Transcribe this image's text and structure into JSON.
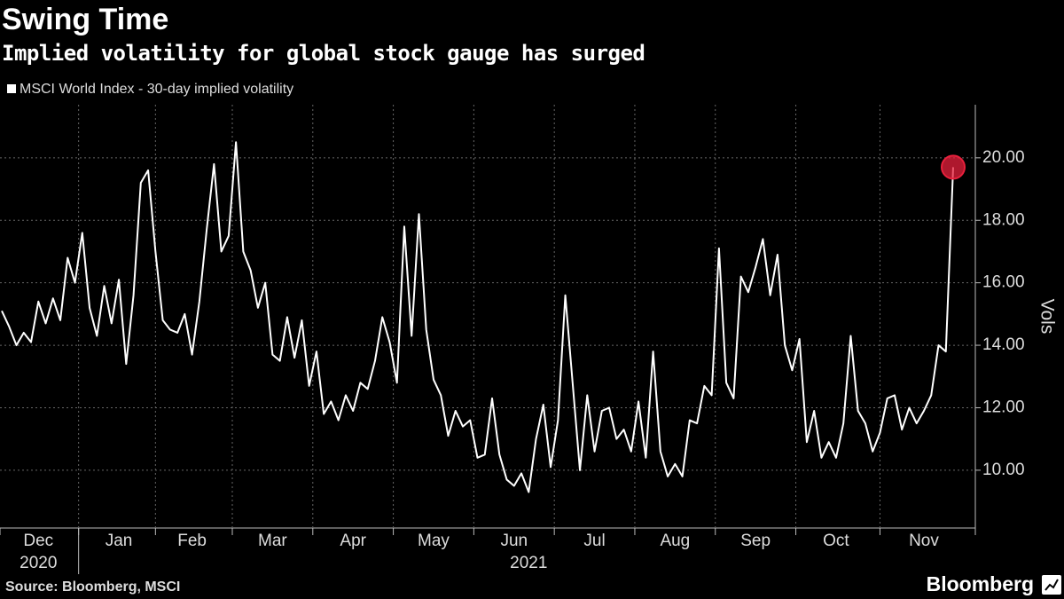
{
  "chart_data": {
    "type": "line",
    "title": "Swing Time",
    "subtitle": "Implied volatility for global stock gauge has surged",
    "y_axis_label": "Vols",
    "source": "Source: Bloomberg, MSCI",
    "brand": "Bloomberg",
    "categories": [
      null,
      null,
      null,
      null,
      null,
      "Dec",
      null,
      null,
      null,
      null,
      null,
      null,
      null,
      null,
      null,
      null,
      "Jan",
      null,
      null,
      null,
      null,
      null,
      null,
      null,
      null,
      null,
      "Feb",
      null,
      null,
      null,
      null,
      null,
      null,
      null,
      null,
      null,
      null,
      "Mar",
      null,
      null,
      null,
      null,
      null,
      null,
      null,
      null,
      null,
      null,
      "Apr",
      null,
      null,
      null,
      null,
      null,
      null,
      null,
      null,
      null,
      null,
      "May",
      null,
      null,
      null,
      null,
      null,
      null,
      null,
      null,
      null,
      null,
      "Jun",
      null,
      null,
      null,
      null,
      null,
      null,
      null,
      null,
      null,
      null,
      "Jul",
      null,
      null,
      null,
      null,
      null,
      null,
      null,
      null,
      null,
      null,
      "Aug",
      null,
      null,
      null,
      null,
      null,
      null,
      null,
      null,
      null,
      null,
      "Sep",
      null,
      null,
      null,
      null,
      null,
      null,
      null,
      null,
      null,
      null,
      "Oct",
      null,
      null,
      null,
      null,
      null,
      null,
      null,
      null,
      null,
      null,
      null,
      "Nov",
      null,
      null,
      null,
      null
    ],
    "x_groups": [
      {
        "label": "2020",
        "index": 5
      },
      {
        "label": "2021",
        "index": 72
      }
    ],
    "series": [
      {
        "name": "MSCI World Index - 30-day implied volatility",
        "color": "#ffffff",
        "values": [
          15.1,
          14.6,
          14.0,
          14.4,
          14.1,
          15.4,
          14.7,
          15.5,
          14.8,
          16.8,
          16.0,
          17.6,
          15.2,
          14.3,
          15.9,
          14.7,
          16.1,
          13.4,
          15.6,
          19.2,
          19.6,
          17.0,
          14.8,
          14.5,
          14.4,
          15.0,
          13.7,
          15.4,
          17.7,
          19.8,
          17.0,
          17.5,
          20.5,
          17.0,
          16.4,
          15.2,
          16.0,
          13.7,
          13.5,
          14.9,
          13.6,
          14.8,
          12.7,
          13.8,
          11.8,
          12.2,
          11.6,
          12.4,
          11.9,
          12.8,
          12.6,
          13.5,
          14.9,
          14.1,
          12.8,
          17.8,
          14.3,
          18.2,
          14.5,
          12.9,
          12.4,
          11.1,
          11.9,
          11.4,
          11.6,
          10.4,
          10.5,
          12.3,
          10.5,
          9.7,
          9.5,
          9.9,
          9.3,
          11.0,
          12.1,
          10.1,
          11.6,
          15.6,
          12.8,
          10.0,
          12.4,
          10.6,
          11.9,
          12.0,
          11.0,
          11.3,
          10.6,
          12.2,
          10.4,
          13.8,
          10.6,
          9.8,
          10.2,
          9.8,
          11.6,
          11.5,
          12.7,
          12.4,
          17.1,
          12.8,
          12.3,
          16.2,
          15.7,
          16.5,
          17.4,
          15.6,
          16.9,
          14.0,
          13.2,
          14.2,
          10.9,
          11.9,
          10.4,
          10.9,
          10.4,
          11.5,
          14.3,
          11.9,
          11.5,
          10.6,
          11.2,
          12.3,
          12.4,
          11.3,
          12.0,
          11.5,
          11.9,
          12.4,
          14.0,
          13.8,
          19.7
        ]
      }
    ],
    "highlight_last": true,
    "highlight_color": "#e8203c",
    "ylim": [
      8.15,
      21.7
    ],
    "yticks": [
      {
        "value": 10,
        "label": "10.00"
      },
      {
        "value": 12,
        "label": "12.00"
      },
      {
        "value": 14,
        "label": "14.00"
      },
      {
        "value": 16,
        "label": "16.00"
      },
      {
        "value": 18,
        "label": "18.00"
      },
      {
        "value": 20,
        "label": "20.00"
      }
    ],
    "grid": true,
    "y_axis_side": "right"
  }
}
